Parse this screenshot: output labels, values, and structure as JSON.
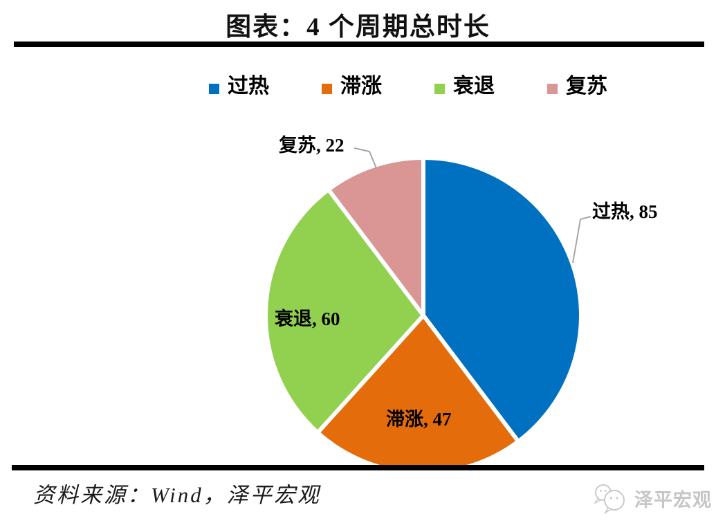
{
  "title": "图表：4 个周期总时长",
  "legend": [
    {
      "label": "过热",
      "color": "#0070C0"
    },
    {
      "label": "滞涨",
      "color": "#E46C0A"
    },
    {
      "label": "衰退",
      "color": "#92D050"
    },
    {
      "label": "复苏",
      "color": "#D99694"
    }
  ],
  "chart_data": {
    "type": "pie",
    "title": "图表：4 个周期总时长",
    "categories": [
      "过热",
      "滞涨",
      "衰退",
      "复苏"
    ],
    "values": [
      85,
      47,
      60,
      22
    ],
    "colors": [
      "#0070C0",
      "#E46C0A",
      "#92D050",
      "#D99694"
    ],
    "data_labels": [
      "过热, 85",
      "滞涨, 47",
      "衰退, 60",
      "复苏, 22"
    ],
    "start_angle_deg": 0,
    "direction": "clockwise",
    "legend_position": "top",
    "slice_border_color": "#ffffff",
    "leader_line_color": "#a6a6a6"
  },
  "slice_labels": {
    "guore": "过热, 85",
    "zhizhang": "滞涨, 47",
    "shuaitui": "衰退, 60",
    "fusu": "复苏, 22"
  },
  "footer": {
    "source": "资料来源：Wind，泽平宏观",
    "brand": "泽平宏观"
  }
}
